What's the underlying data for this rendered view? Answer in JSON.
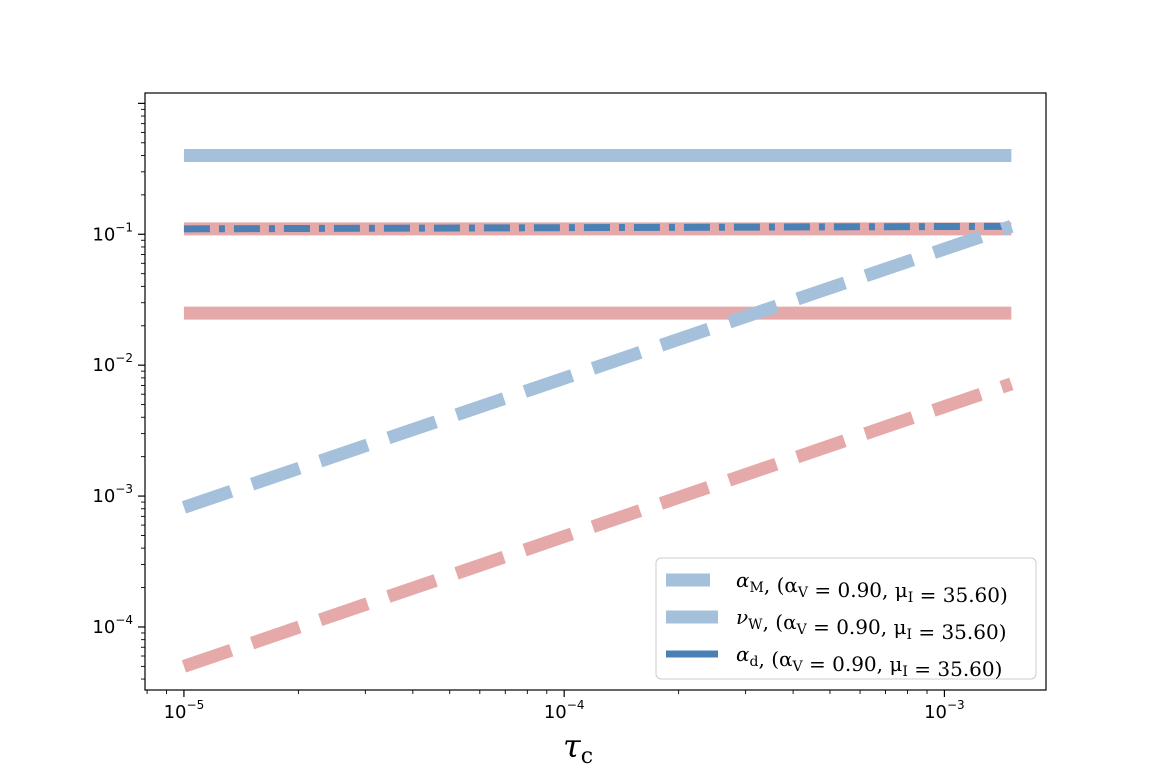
{
  "chart_data": {
    "type": "line",
    "xscale": "log",
    "yscale": "log",
    "xlim": [
      7.9e-06,
      0.00185
    ],
    "ylim": [
      3.3e-05,
      1.2
    ],
    "grid": false,
    "legend_position": "lower-right",
    "xlabel": "τ",
    "xlabel_sub": "c",
    "ylabel": "",
    "title": "",
    "x_ticks": [
      {
        "value": 1e-05,
        "base": "10",
        "exp": "−5"
      },
      {
        "value": 0.0001,
        "base": "10",
        "exp": "−4"
      },
      {
        "value": 0.001,
        "base": "10",
        "exp": "−3"
      }
    ],
    "y_ticks": [
      {
        "value": 0.0001,
        "base": "10",
        "exp": "−4"
      },
      {
        "value": 0.001,
        "base": "10",
        "exp": "−3"
      },
      {
        "value": 0.01,
        "base": "10",
        "exp": "−2"
      },
      {
        "value": 0.1,
        "base": "10",
        "exp": "−1"
      }
    ],
    "legend": [
      {
        "label": "α_M, (α_V = 0.90, μ_I = 35.60)",
        "sym": "α",
        "sub": "M",
        "rest": ", (α",
        "rest_sub": "V",
        "mid": " = 0.90, μ",
        "mid_sub": "I",
        "end": " = 35.60)",
        "style": "dashed",
        "color": "#a5c0da"
      },
      {
        "label": "ν_W, (α_V = 0.90, μ_I = 35.60)",
        "sym": "ν",
        "sub": "W",
        "rest": ", (α",
        "rest_sub": "V",
        "mid": " = 0.90, μ",
        "mid_sub": "I",
        "end": " = 35.60)",
        "style": "solid",
        "color": "#a5c0da"
      },
      {
        "label": "α_d, (α_V = 0.90, μ_I = 35.60)",
        "sym": "α",
        "sub": "d",
        "rest": ", (α",
        "rest_sub": "V",
        "mid": " = 0.90, μ",
        "mid_sub": "I",
        "end": " = 35.60)",
        "style": "dashdot",
        "color": "#4a80b4"
      }
    ],
    "series": [
      {
        "key": "nu_w_blue",
        "style": "solid",
        "color": "#a5c0da",
        "x": [
          1e-05,
          0.0015
        ],
        "y": [
          0.4,
          0.4
        ]
      },
      {
        "key": "nu_w_red",
        "style": "solid",
        "color": "#e6a9a9",
        "x": [
          1e-05,
          0.0015
        ],
        "y": [
          0.025,
          0.025
        ]
      },
      {
        "key": "alpha_d_red",
        "style": "solid",
        "color": "#e6a9a9",
        "x": [
          1e-05,
          0.0015
        ],
        "y": [
          0.11,
          0.11
        ]
      },
      {
        "key": "alpha_d_blue",
        "style": "dashdot",
        "color": "#4a80b4",
        "x": [
          1e-05,
          0.0015
        ],
        "y": [
          0.11,
          0.115
        ]
      },
      {
        "key": "alpha_m_blue",
        "style": "dashed",
        "color": "#a5c0da",
        "x": [
          1e-05,
          0.0015
        ],
        "y": [
          0.00082,
          0.115
        ]
      },
      {
        "key": "alpha_m_red",
        "style": "dashed",
        "color": "#e6a9a9",
        "x": [
          1e-05,
          0.0015
        ],
        "y": [
          5e-05,
          0.0072
        ]
      }
    ]
  }
}
